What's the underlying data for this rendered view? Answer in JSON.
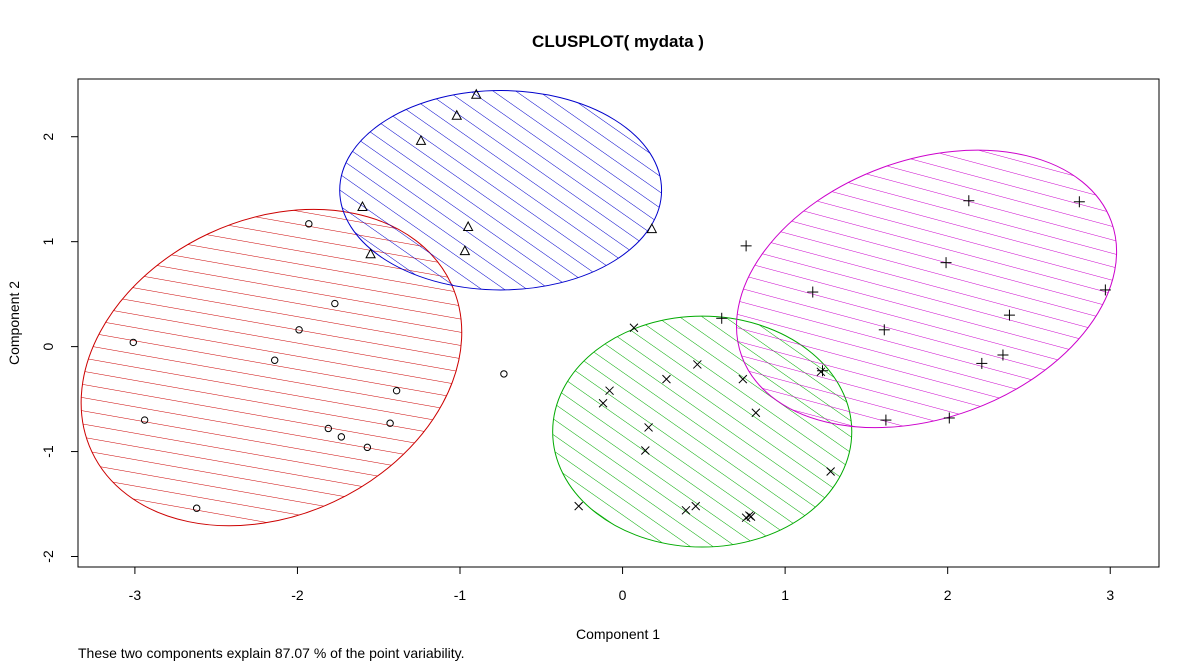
{
  "chart_data": {
    "type": "scatter",
    "title": "CLUSPLOT( mydata )",
    "xlabel": "Component 1",
    "ylabel": "Component 2",
    "xlim": [
      -3.35,
      3.3
    ],
    "ylim": [
      -2.1,
      2.55
    ],
    "xticks": [
      -3,
      -2,
      -1,
      0,
      1,
      2,
      3
    ],
    "yticks": [
      -2,
      -1,
      0,
      1,
      2
    ],
    "grid": false,
    "footnote": "These two components explain 87.07 % of the point variability.",
    "clusters": [
      {
        "marker": "circle",
        "color": "#cc0000",
        "ellipse": {
          "cx": -2.16,
          "cy": -0.2,
          "rx": 1.22,
          "ry": 1.41,
          "angle_deg": 25
        },
        "points": [
          [
            -3.01,
            0.04
          ],
          [
            -2.94,
            -0.7
          ],
          [
            -2.62,
            -1.54
          ],
          [
            -2.14,
            -0.13
          ],
          [
            -1.99,
            0.16
          ],
          [
            -1.93,
            1.17
          ],
          [
            -1.81,
            -0.78
          ],
          [
            -1.77,
            0.41
          ],
          [
            -1.73,
            -0.86
          ],
          [
            -1.57,
            -0.96
          ],
          [
            -1.43,
            -0.73
          ],
          [
            -1.39,
            -0.42
          ],
          [
            -0.73,
            -0.26
          ]
        ]
      },
      {
        "marker": "triangle",
        "color": "#0000cc",
        "ellipse": {
          "cx": -0.75,
          "cy": 1.49,
          "rx": 0.99,
          "ry": 0.95,
          "angle_deg": 0
        },
        "points": [
          [
            -0.9,
            2.4
          ],
          [
            -1.02,
            2.2
          ],
          [
            -1.24,
            1.96
          ],
          [
            -1.6,
            1.33
          ],
          [
            -1.55,
            0.88
          ],
          [
            -0.95,
            1.14
          ],
          [
            -0.97,
            0.91
          ],
          [
            0.18,
            1.12
          ]
        ]
      },
      {
        "marker": "x",
        "color": "#00aa00",
        "ellipse": {
          "cx": 0.49,
          "cy": -0.81,
          "rx": 0.92,
          "ry": 1.1,
          "angle_deg": 0
        },
        "points": [
          [
            0.07,
            0.18
          ],
          [
            -0.08,
            -0.42
          ],
          [
            -0.12,
            -0.54
          ],
          [
            0.27,
            -0.31
          ],
          [
            0.46,
            -0.17
          ],
          [
            0.16,
            -0.77
          ],
          [
            0.14,
            -0.99
          ],
          [
            -0.27,
            -1.52
          ],
          [
            0.39,
            -1.56
          ],
          [
            0.45,
            -1.52
          ],
          [
            0.74,
            -0.31
          ],
          [
            0.82,
            -0.63
          ],
          [
            0.78,
            -1.61
          ],
          [
            0.76,
            -1.63
          ],
          [
            0.79,
            -1.62
          ],
          [
            1.28,
            -1.19
          ],
          [
            1.22,
            -0.24
          ]
        ]
      },
      {
        "marker": "plus",
        "color": "#cc00cc",
        "ellipse": {
          "cx": 1.87,
          "cy": 0.55,
          "rx": 1.21,
          "ry": 1.23,
          "angle_deg": 20
        },
        "points": [
          [
            0.61,
            0.27
          ],
          [
            0.76,
            0.96
          ],
          [
            1.17,
            0.52
          ],
          [
            1.23,
            -0.23
          ],
          [
            1.61,
            0.16
          ],
          [
            1.62,
            -0.7
          ],
          [
            1.99,
            0.8
          ],
          [
            2.01,
            -0.68
          ],
          [
            2.13,
            1.39
          ],
          [
            2.21,
            -0.16
          ],
          [
            2.34,
            -0.08
          ],
          [
            2.38,
            0.3
          ],
          [
            2.81,
            1.38
          ],
          [
            2.97,
            0.54
          ]
        ]
      }
    ]
  }
}
